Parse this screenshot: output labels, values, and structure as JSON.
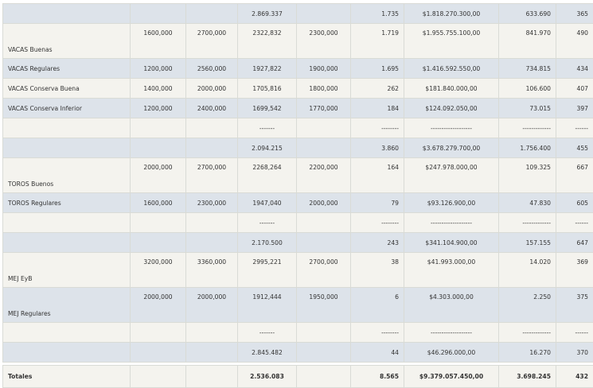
{
  "table": {
    "rows": [
      [
        null,
        null,
        null,
        "2.869.337",
        null,
        "1.735",
        "$1.818.270.300,00",
        "633.690",
        "365"
      ],
      [
        "VACAS Buenas",
        "1600,000",
        "2700,000",
        "2322,832",
        "2300,000",
        "1.719",
        "$1.955.755.100,00",
        "841.970",
        "490"
      ],
      [
        "VACAS Regulares",
        "1200,000",
        "2560,000",
        "1927,822",
        "1900,000",
        "1.695",
        "$1.416.592.550,00",
        "734.815",
        "434"
      ],
      [
        "VACAS Conserva Buena",
        "1400,000",
        "2000,000",
        "1705,816",
        "1800,000",
        "262",
        "$181.840.000,00",
        "106.600",
        "407"
      ],
      [
        "VACAS Conserva Inferior",
        "1200,000",
        "2400,000",
        "1699,542",
        "1770,000",
        "184",
        "$124.092.050,00",
        "73.015",
        "397"
      ],
      [
        null,
        null,
        null,
        "-------",
        null,
        "--------",
        "-------------------",
        "-------------",
        "------"
      ],
      [
        null,
        null,
        null,
        "2.094.215",
        null,
        "3.860",
        "$3.678.279.700,00",
        "1.756.400",
        "455"
      ],
      [
        "TOROS Buenos",
        "2000,000",
        "2700,000",
        "2268,264",
        "2200,000",
        "164",
        "$247.978.000,00",
        "109.325",
        "667"
      ],
      [
        "TOROS Regulares",
        "1600,000",
        "2300,000",
        "1947,040",
        "2000,000",
        "79",
        "$93.126.900,00",
        "47.830",
        "605"
      ],
      [
        null,
        null,
        null,
        "-------",
        null,
        "--------",
        "-------------------",
        "-------------",
        "------"
      ],
      [
        null,
        null,
        null,
        "2.170.500",
        null,
        "243",
        "$341.104.900,00",
        "157.155",
        "647"
      ],
      [
        "MEJ EyB",
        "3200,000",
        "3360,000",
        "2995,221",
        "2700,000",
        "38",
        "$41.993.000,00",
        "14.020",
        "369"
      ],
      [
        "MEJ Regulares",
        "2000,000",
        "2000,000",
        "1912,444",
        "1950,000",
        "6",
        "$4.303.000,00",
        "2.250",
        "375"
      ],
      [
        null,
        null,
        null,
        "-------",
        null,
        "--------",
        "-------------------",
        "-------------",
        "------"
      ],
      [
        null,
        null,
        null,
        "2.845.482",
        null,
        "44",
        "$46.296.000,00",
        "16.270",
        "370"
      ]
    ],
    "totals": [
      "Totales",
      null,
      null,
      "2.536.083",
      null,
      "8.565",
      "$9.379.057.450,00",
      "3.698.245",
      "432"
    ]
  }
}
